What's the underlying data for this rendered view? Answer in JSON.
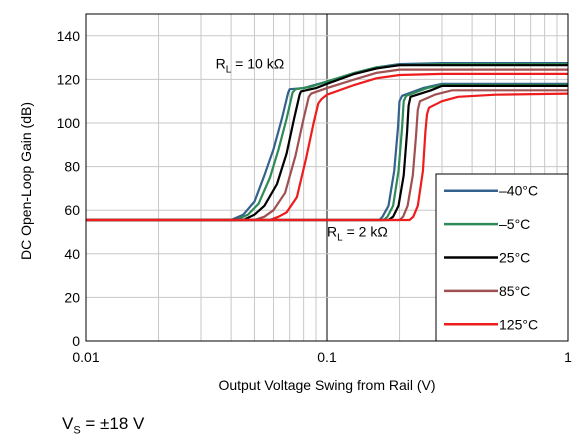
{
  "chart_data": {
    "type": "line",
    "title": "",
    "xlabel": "Output Voltage Swing from Rail (V)",
    "ylabel": "DC Open-Loop Gain (dB)",
    "x_scale": "log",
    "xlim": [
      0.01,
      1
    ],
    "ylim": [
      0,
      150
    ],
    "x_ticks": [
      {
        "value": 0.01,
        "label": "0.01"
      },
      {
        "value": 0.1,
        "label": "0.1"
      },
      {
        "value": 1,
        "label": "1"
      }
    ],
    "y_ticks": [
      {
        "value": 0,
        "label": "0"
      },
      {
        "value": 20,
        "label": "20"
      },
      {
        "value": 40,
        "label": "40"
      },
      {
        "value": 60,
        "label": "60"
      },
      {
        "value": 80,
        "label": "80"
      },
      {
        "value": 100,
        "label": "100"
      },
      {
        "value": 120,
        "label": "120"
      },
      {
        "value": 140,
        "label": "140"
      }
    ],
    "grid": true,
    "legend_position": "bottom-right",
    "annotations": [
      {
        "main": "R",
        "sub": "L",
        "rest": " = 10 kΩ",
        "x": 0.0345,
        "y": 125
      },
      {
        "main": "R",
        "sub": "L",
        "rest": " = 2 kΩ",
        "x": 0.1,
        "y": 48
      }
    ],
    "series": [
      {
        "name": "–40°C",
        "color": "#34618e",
        "group": "RL = 10 kΩ",
        "points": [
          [
            0.01,
            55.5
          ],
          [
            0.04,
            55.5
          ],
          [
            0.045,
            58
          ],
          [
            0.05,
            64
          ],
          [
            0.055,
            76
          ],
          [
            0.06,
            88
          ],
          [
            0.065,
            102
          ],
          [
            0.069,
            114
          ],
          [
            0.07,
            115.5
          ],
          [
            0.08,
            116
          ],
          [
            0.1,
            119
          ],
          [
            0.13,
            123
          ],
          [
            0.16,
            125.5
          ],
          [
            0.2,
            127
          ],
          [
            0.3,
            127.5
          ],
          [
            1,
            127.5
          ]
        ]
      },
      {
        "name": "–5°C",
        "color": "#2e8b57",
        "group": "RL = 10 kΩ",
        "points": [
          [
            0.01,
            55.5
          ],
          [
            0.042,
            55.5
          ],
          [
            0.047,
            58
          ],
          [
            0.052,
            63
          ],
          [
            0.058,
            75
          ],
          [
            0.063,
            88
          ],
          [
            0.068,
            102
          ],
          [
            0.072,
            114
          ],
          [
            0.074,
            115.5
          ],
          [
            0.085,
            116.5
          ],
          [
            0.1,
            119
          ],
          [
            0.13,
            123
          ],
          [
            0.16,
            125.5
          ],
          [
            0.2,
            126.5
          ],
          [
            0.3,
            127
          ],
          [
            1,
            127
          ]
        ]
      },
      {
        "name": "25°C",
        "color": "#000000",
        "group": "RL = 10 kΩ",
        "points": [
          [
            0.01,
            55.5
          ],
          [
            0.045,
            55.5
          ],
          [
            0.05,
            58
          ],
          [
            0.055,
            62
          ],
          [
            0.062,
            72
          ],
          [
            0.068,
            86
          ],
          [
            0.073,
            102
          ],
          [
            0.077,
            113
          ],
          [
            0.078,
            114.5
          ],
          [
            0.09,
            116
          ],
          [
            0.1,
            118
          ],
          [
            0.13,
            122.5
          ],
          [
            0.16,
            125
          ],
          [
            0.2,
            126.5
          ],
          [
            0.3,
            126.5
          ],
          [
            1,
            126.5
          ]
        ]
      },
      {
        "name": "85°C",
        "color": "#a05050",
        "group": "RL = 10 kΩ",
        "points": [
          [
            0.01,
            55.5
          ],
          [
            0.05,
            55.5
          ],
          [
            0.055,
            57
          ],
          [
            0.06,
            60
          ],
          [
            0.067,
            68
          ],
          [
            0.074,
            85
          ],
          [
            0.08,
            102
          ],
          [
            0.084,
            112
          ],
          [
            0.086,
            113.5
          ],
          [
            0.1,
            116
          ],
          [
            0.13,
            120
          ],
          [
            0.16,
            123
          ],
          [
            0.2,
            124.5
          ],
          [
            0.3,
            124.5
          ],
          [
            1,
            124.5
          ]
        ]
      },
      {
        "name": "125°C",
        "color": "#ee1c1c",
        "group": "RL = 10 kΩ",
        "points": [
          [
            0.01,
            55.5
          ],
          [
            0.058,
            55.5
          ],
          [
            0.063,
            57
          ],
          [
            0.068,
            59
          ],
          [
            0.075,
            66
          ],
          [
            0.082,
            84
          ],
          [
            0.088,
            100
          ],
          [
            0.092,
            109
          ],
          [
            0.095,
            111
          ],
          [
            0.1,
            113
          ],
          [
            0.13,
            117.5
          ],
          [
            0.16,
            120.5
          ],
          [
            0.2,
            122
          ],
          [
            0.3,
            122.5
          ],
          [
            1,
            122.5
          ]
        ]
      },
      {
        "name": "–40°C",
        "color": "#34618e",
        "group": "RL = 2 kΩ",
        "points": [
          [
            0.01,
            55.5
          ],
          [
            0.165,
            55.5
          ],
          [
            0.17,
            57
          ],
          [
            0.18,
            62
          ],
          [
            0.19,
            78
          ],
          [
            0.197,
            98
          ],
          [
            0.2,
            110
          ],
          [
            0.205,
            112.5
          ],
          [
            0.25,
            116
          ],
          [
            0.3,
            118
          ],
          [
            1,
            118
          ]
        ]
      },
      {
        "name": "–5°C",
        "color": "#2e8b57",
        "group": "RL = 2 kΩ",
        "points": [
          [
            0.01,
            55.5
          ],
          [
            0.172,
            55.5
          ],
          [
            0.178,
            57
          ],
          [
            0.188,
            62
          ],
          [
            0.198,
            78
          ],
          [
            0.205,
            98
          ],
          [
            0.208,
            110
          ],
          [
            0.213,
            112.5
          ],
          [
            0.26,
            116
          ],
          [
            0.3,
            117.5
          ],
          [
            1,
            117.5
          ]
        ]
      },
      {
        "name": "25°C",
        "color": "#000000",
        "group": "RL = 2 kΩ",
        "points": [
          [
            0.01,
            55.5
          ],
          [
            0.18,
            55.5
          ],
          [
            0.188,
            57
          ],
          [
            0.198,
            62
          ],
          [
            0.208,
            76
          ],
          [
            0.215,
            96
          ],
          [
            0.218,
            108
          ],
          [
            0.222,
            112
          ],
          [
            0.27,
            115
          ],
          [
            0.3,
            117
          ],
          [
            1,
            117
          ]
        ]
      },
      {
        "name": "85°C",
        "color": "#a05050",
        "group": "RL = 2 kΩ",
        "points": [
          [
            0.01,
            55.5
          ],
          [
            0.2,
            55.5
          ],
          [
            0.207,
            57
          ],
          [
            0.216,
            62
          ],
          [
            0.227,
            76
          ],
          [
            0.234,
            94
          ],
          [
            0.238,
            106
          ],
          [
            0.243,
            110
          ],
          [
            0.28,
            113
          ],
          [
            0.33,
            115
          ],
          [
            1,
            115
          ]
        ]
      },
      {
        "name": "125°C",
        "color": "#ee1c1c",
        "group": "RL = 2 kΩ",
        "points": [
          [
            0.01,
            55.5
          ],
          [
            0.22,
            55.5
          ],
          [
            0.228,
            57
          ],
          [
            0.238,
            62
          ],
          [
            0.25,
            78
          ],
          [
            0.256,
            96
          ],
          [
            0.26,
            104
          ],
          [
            0.265,
            107
          ],
          [
            0.3,
            110
          ],
          [
            0.35,
            112
          ],
          [
            0.5,
            113
          ],
          [
            1,
            113.5
          ]
        ]
      }
    ],
    "legend": [
      {
        "label": "–40°C",
        "color": "#34618e"
      },
      {
        "label": "–5°C",
        "color": "#2e8b57"
      },
      {
        "label": "25°C",
        "color": "#000000"
      },
      {
        "label": "85°C",
        "color": "#a05050"
      },
      {
        "label": "125°C",
        "color": "#ee1c1c"
      }
    ]
  },
  "footnote": {
    "main": "V",
    "sub": "S",
    "rest": " = ±18 V"
  }
}
